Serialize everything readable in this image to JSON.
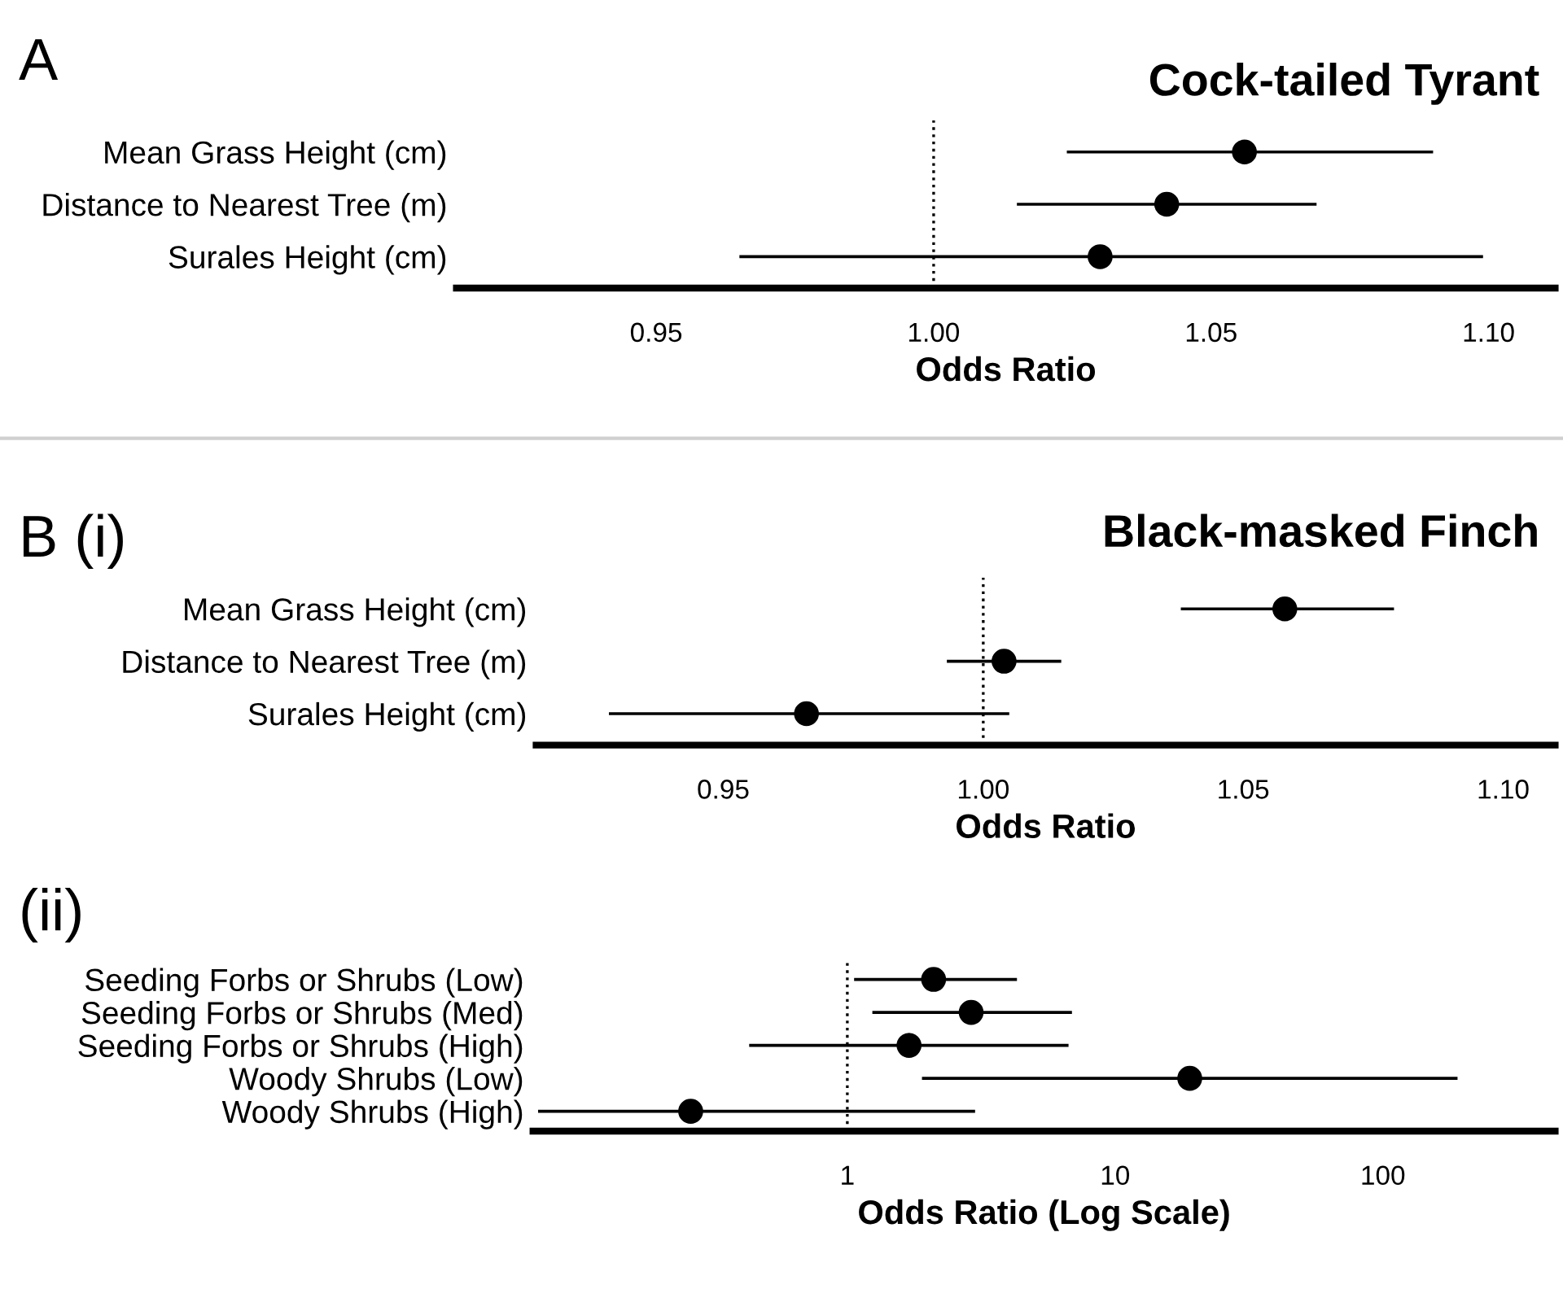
{
  "chart_data": [
    {
      "type": "scatter",
      "orientation": "horizontal",
      "title": "Cock-tailed Tyrant",
      "xlabel": "Odds Ratio",
      "annotations": [
        "A"
      ],
      "categories": [
        "Mean Grass Height (cm)",
        "Distance to Nearest Tree (m)",
        "Surales Height (cm)"
      ],
      "values": [
        1.056,
        1.042,
        1.03
      ],
      "errors": [
        [
          1.024,
          1.09
        ],
        [
          1.015,
          1.069
        ],
        [
          0.965,
          1.099
        ]
      ],
      "color": "#000000",
      "marker": "circle",
      "xlim": [
        0.914,
        1.112
      ],
      "xticks": [
        {
          "value": 0.95,
          "label": "0.95"
        },
        {
          "value": 1.0,
          "label": "1.00"
        },
        {
          "value": 1.05,
          "label": "1.05"
        },
        {
          "value": 1.1,
          "label": "1.10"
        }
      ],
      "ref_lines": [
        {
          "axis": "x",
          "value": 1.0,
          "line_style": "dotted",
          "color": "#000000"
        }
      ],
      "grid": false,
      "legend": false
    },
    {
      "type": "scatter",
      "orientation": "horizontal",
      "title": "Black-masked Finch",
      "xlabel": "Odds Ratio",
      "annotations": [
        "B (i)"
      ],
      "categories": [
        "Mean Grass Height (cm)",
        "Distance to Nearest Tree (m)",
        "Surales Height (cm)"
      ],
      "values": [
        1.058,
        1.004,
        0.966
      ],
      "errors": [
        [
          1.038,
          1.079
        ],
        [
          0.993,
          1.015
        ],
        [
          0.928,
          1.005
        ]
      ],
      "color": "#000000",
      "marker": "circle",
      "xlim": [
        0.914,
        1.11
      ],
      "xticks": [
        {
          "value": 0.95,
          "label": "0.95"
        },
        {
          "value": 1.0,
          "label": "1.00"
        },
        {
          "value": 1.05,
          "label": "1.05"
        },
        {
          "value": 1.1,
          "label": "1.10"
        }
      ],
      "ref_lines": [
        {
          "axis": "x",
          "value": 1.0,
          "line_style": "dotted",
          "color": "#000000"
        }
      ],
      "grid": false,
      "legend": false
    },
    {
      "type": "scatter",
      "orientation": "horizontal",
      "xlabel": "Odds Ratio (Log Scale)",
      "annotations": [
        "(ii)"
      ],
      "log": "x",
      "categories": [
        "Seeding Forbs or Shrubs (Low)",
        "Seeding Forbs or Shrubs (Med)",
        "Seeding Forbs or Shrubs (High)",
        "Woody Shrubs (Low)",
        "Woody Shrubs (High)"
      ],
      "values": [
        2.1,
        2.9,
        1.7,
        19,
        0.26
      ],
      "errors": [
        [
          1.06,
          4.3
        ],
        [
          1.24,
          6.9
        ],
        [
          0.43,
          6.7
        ],
        [
          1.9,
          190
        ],
        [
          0.07,
          3.0
        ]
      ],
      "color": "#000000",
      "marker": "circle",
      "xlim": [
        0.067,
        440
      ],
      "xticks": [
        1,
        10,
        100
      ],
      "ref_lines": [
        {
          "axis": "x",
          "value": 1,
          "line_style": "dotted",
          "color": "#000000"
        }
      ],
      "grid": false,
      "legend": false
    }
  ]
}
